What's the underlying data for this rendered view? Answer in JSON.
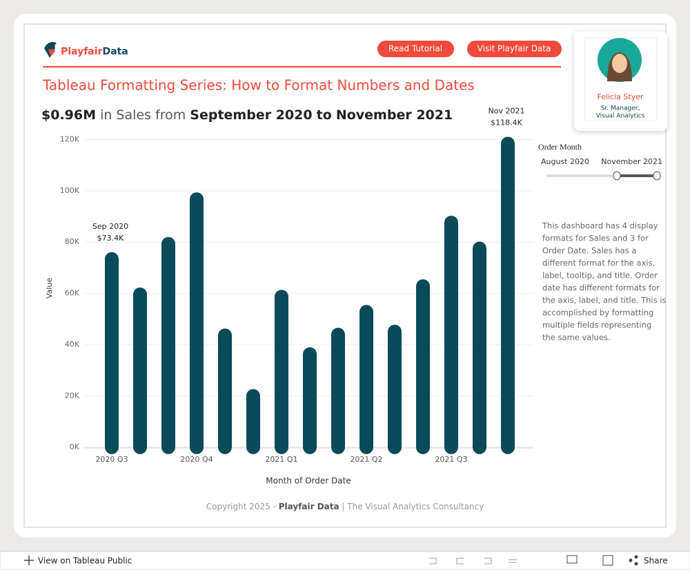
{
  "header": {
    "logo": {
      "brand": "Playfair",
      "brand2": "Data"
    },
    "buttons": [
      "Read Tutorial",
      "Visit Playfair Data"
    ],
    "title": "Tableau Formatting Series: How to Format Numbers and Dates",
    "subtitle": [
      "$0.96M",
      "in Sales from",
      "September 2020",
      "to",
      "November 2021"
    ]
  },
  "profile": {
    "name": "Felicia Styer",
    "role": [
      "Sr. Manager,",
      "Visual Analytics"
    ]
  },
  "chart_data": {
    "type": "bar",
    "y_label": "Value",
    "x_label": "Month of Order Date",
    "color": "#0b4a5a",
    "grid": true,
    "categories": [
      "Sep 2020",
      null,
      null,
      null,
      null,
      null,
      null,
      null,
      null,
      null,
      null,
      null,
      null,
      null,
      "Nov 2021"
    ],
    "x_labels": [
      "2020 Q3",
      null,
      null,
      "2020 Q4",
      null,
      null,
      "2021 Q1",
      null,
      null,
      "2021 Q2",
      null,
      null,
      "2021 Q3",
      null,
      null
    ],
    "values": [
      73400,
      59600,
      79300,
      96700,
      43600,
      20000,
      58700,
      36300,
      43900,
      52800,
      45100,
      62800,
      87600,
      77500,
      118400
    ],
    "value_labels": [
      "$73.4K",
      null,
      null,
      null,
      null,
      null,
      null,
      null,
      null,
      null,
      null,
      null,
      null,
      null,
      "$118.4K"
    ],
    "ylim": [
      -3000,
      122000
    ],
    "yticks": [
      {
        "value": 0,
        "label": "0K"
      },
      {
        "value": 20000,
        "label": "20K"
      },
      {
        "value": 40000,
        "label": "40K"
      },
      {
        "value": 60000,
        "label": "60K"
      },
      {
        "value": 80000,
        "label": "80K"
      },
      {
        "value": 100000,
        "label": "100K"
      },
      {
        "value": 120000,
        "label": "120K"
      }
    ]
  },
  "filter": {
    "title": "Order Month",
    "start": "August 2020",
    "end": "November 2021"
  },
  "description": [
    "This dashboard has 4 display",
    "formats for Sales and 3 for",
    "Order Date. Sales has a",
    "different format for the axis,",
    "label, tooltip, and title. Order",
    "date has different formats for",
    "the axis, label, and title. This is",
    "accomplished by formatting",
    "multiple fields representing",
    "the same values."
  ],
  "footer": {
    "prefix": "Copyright 2025 -",
    "brand": "Playfair Data",
    "suffix": "| The Visual Analytics Consultancy"
  },
  "toolbar": {
    "view": "View on Tableau Public",
    "share": "Share"
  }
}
